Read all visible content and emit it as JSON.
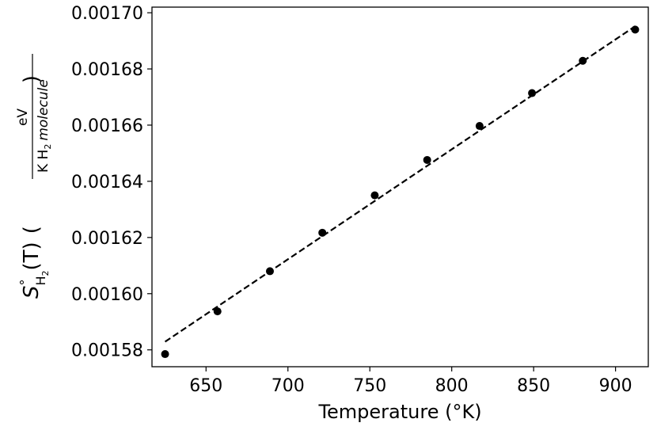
{
  "chart_data": {
    "type": "scatter",
    "title": "",
    "xlabel": "Temperature (°K)",
    "ylabel": {
      "symbol": "S",
      "superscript": "°",
      "subscript": "H",
      "subscript_sub": "2",
      "argument": "(T)",
      "unit_numerator": "eV",
      "unit_denominator": "K H",
      "unit_denominator_sub": "2",
      "unit_denominator_tail": "molecule"
    },
    "xlim": [
      617,
      920
    ],
    "ylim": [
      0.001574,
      0.001702
    ],
    "xticks": [
      650,
      700,
      750,
      800,
      850,
      900
    ],
    "yticks": [
      0.0017,
      0.00168,
      0.00166,
      0.00164,
      0.00162,
      0.0016,
      0.00158
    ],
    "xtick_labels": [
      "650",
      "700",
      "750",
      "800",
      "850",
      "900"
    ],
    "ytick_labels": [
      "0.00170",
      "0.00168",
      "0.00166",
      "0.00164",
      "0.00162",
      "0.00160",
      "0.00158"
    ],
    "grid": false,
    "series": [
      {
        "style": "points",
        "color": "#000000",
        "x": [
          625,
          657,
          689,
          721,
          753,
          785,
          817,
          849,
          880,
          912
        ],
        "y": [
          0.0015785,
          0.0015937,
          0.001608,
          0.0016217,
          0.001635,
          0.0016476,
          0.0016597,
          0.0016714,
          0.0016829,
          0.001694
        ]
      },
      {
        "style": "dashed-line",
        "color": "#000000",
        "x": [
          625,
          912
        ],
        "y": [
          0.0015829,
          0.0016952
        ]
      }
    ]
  }
}
